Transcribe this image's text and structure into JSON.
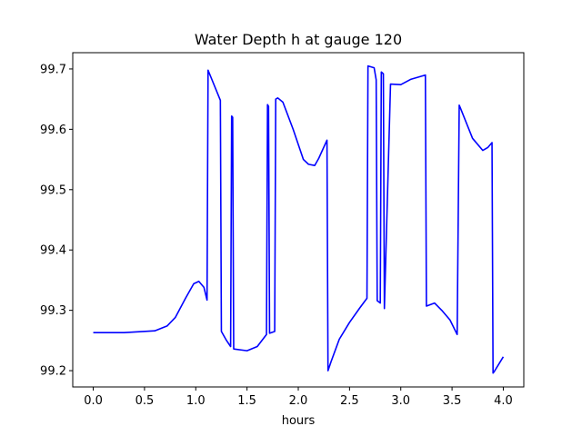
{
  "chart_data": {
    "type": "line",
    "title": "Water Depth h at gauge 120",
    "xlabel": "hours",
    "ylabel": "",
    "xlim": [
      -0.2,
      4.2
    ],
    "ylim": [
      99.173,
      99.727
    ],
    "x_ticks": [
      0.0,
      0.5,
      1.0,
      1.5,
      2.0,
      2.5,
      3.0,
      3.5,
      4.0
    ],
    "x_tick_labels": [
      "0.0",
      "0.5",
      "1.0",
      "1.5",
      "2.0",
      "2.5",
      "3.0",
      "3.5",
      "4.0"
    ],
    "y_ticks": [
      99.2,
      99.3,
      99.4,
      99.5,
      99.6,
      99.7
    ],
    "y_tick_labels": [
      "99.2",
      "99.3",
      "99.4",
      "99.5",
      "99.6",
      "99.7"
    ],
    "grid": false,
    "line_color": "#0000ff",
    "series": [
      {
        "x": [
          0.0,
          0.3,
          0.6,
          0.72,
          0.8,
          0.9,
          0.98,
          1.03,
          1.08,
          1.11,
          1.12,
          1.24,
          1.25,
          1.3,
          1.34,
          1.35,
          1.36,
          1.37,
          1.5,
          1.6,
          1.69,
          1.7,
          1.71,
          1.72,
          1.77,
          1.78,
          1.8,
          1.85,
          1.95,
          2.05,
          2.1,
          2.16,
          2.2,
          2.28,
          2.29,
          2.32,
          2.4,
          2.5,
          2.6,
          2.67,
          2.68,
          2.74,
          2.76,
          2.77,
          2.8,
          2.81,
          2.83,
          2.84,
          2.9,
          3.0,
          3.1,
          3.24,
          3.25,
          3.33,
          3.4,
          3.48,
          3.55,
          3.57,
          3.58,
          3.7,
          3.8,
          3.85,
          3.89,
          3.9,
          3.91,
          4.0
        ],
        "y": [
          99.263,
          99.263,
          99.266,
          99.274,
          99.288,
          99.32,
          99.344,
          99.348,
          99.338,
          99.317,
          99.698,
          99.648,
          99.265,
          99.25,
          99.24,
          99.622,
          99.62,
          99.236,
          99.233,
          99.24,
          99.26,
          99.641,
          99.638,
          99.262,
          99.265,
          99.65,
          99.652,
          99.645,
          99.6,
          99.55,
          99.542,
          99.54,
          99.552,
          99.582,
          99.2,
          99.215,
          99.252,
          99.28,
          99.304,
          99.32,
          99.705,
          99.702,
          99.682,
          99.316,
          99.312,
          99.695,
          99.692,
          99.303,
          99.675,
          99.674,
          99.683,
          99.69,
          99.307,
          99.312,
          99.3,
          99.284,
          99.26,
          99.64,
          99.636,
          99.585,
          99.565,
          99.57,
          99.578,
          99.196,
          99.198,
          99.223
        ]
      }
    ]
  }
}
